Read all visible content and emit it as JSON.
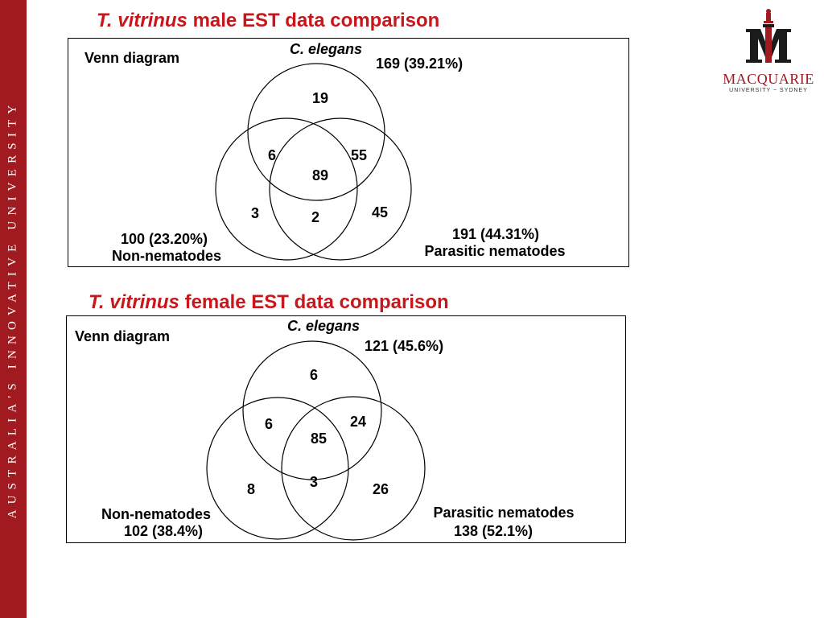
{
  "sidebar": {
    "text": "AUSTRALIA'S INNOVATIVE UNIVERSITY"
  },
  "logo": {
    "icon": "macquarie-crest",
    "word": "MACQUARIE",
    "sub": "UNIVERSITY ~ SYDNEY"
  },
  "colors": {
    "brand_red": "#a11a1f",
    "heading_red": "#c8161d"
  },
  "male": {
    "title_species": "T. vitrinus",
    "title_rest": " male EST data comparison",
    "box_label": "Venn diagram",
    "top_set": {
      "name": "C. elegans",
      "count": "169 (39.21%)"
    },
    "left_set": {
      "name": "Non-nematodes",
      "count": "100 (23.20%)"
    },
    "right_set": {
      "name": "Parasitic nematodes",
      "count": "191 (44.31%)"
    },
    "regions": {
      "top_only": "19",
      "top_left": "6",
      "top_right": "55",
      "all": "89",
      "left_only": "3",
      "left_right": "2",
      "right_only": "45"
    }
  },
  "female": {
    "title_species": "T. vitrinus",
    "title_rest": " female EST data comparison",
    "box_label": "Venn diagram",
    "top_set": {
      "name": "C. elegans",
      "count": "121 (45.6%)"
    },
    "left_set": {
      "name": "Non-nematodes",
      "count": "102 (38.4%)"
    },
    "right_set": {
      "name": "Parasitic nematodes",
      "count": "138 (52.1%)"
    },
    "regions": {
      "top_only": "6",
      "top_left": "6",
      "top_right": "24",
      "all": "85",
      "left_only": "8",
      "left_right": "3",
      "right_only": "26"
    }
  }
}
